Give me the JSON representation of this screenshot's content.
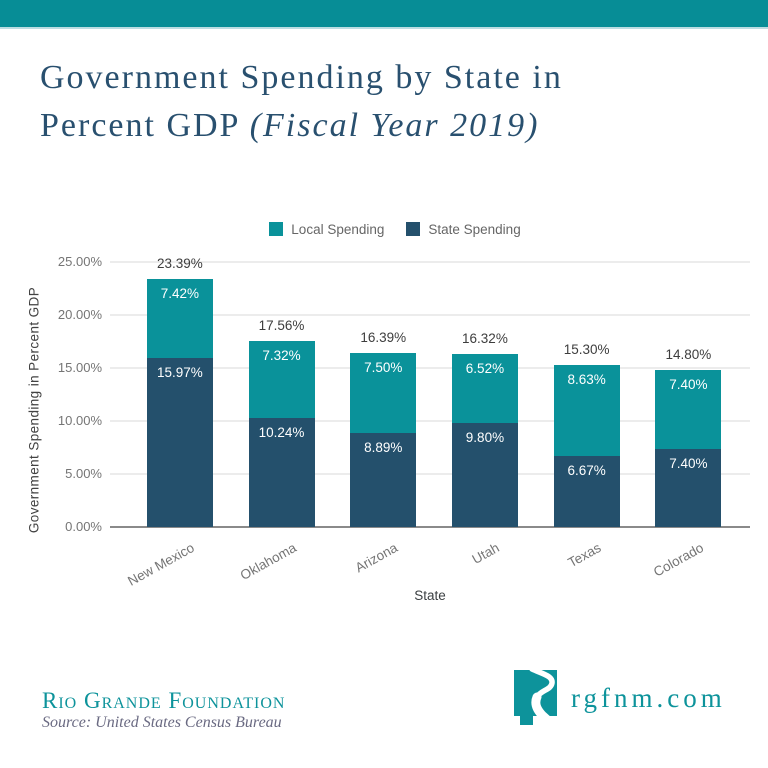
{
  "theme": {
    "band": "#078D96",
    "band_underline": "#BBDDE2",
    "title": "#29506F",
    "brand": "#0D939B"
  },
  "title": {
    "line1": "Government Spending by State in",
    "line2_regular": "Percent GDP ",
    "line2_italic": "(Fiscal Year 2019)"
  },
  "chart_data": {
    "type": "bar",
    "stacked": true,
    "title": "Government Spending by State in Percent GDP (Fiscal Year 2019)",
    "categories": [
      "New Mexico",
      "Oklahoma",
      "Arizona",
      "Utah",
      "Texas",
      "Colorado"
    ],
    "series": [
      {
        "name": "Local Spending",
        "color": "#0A929A",
        "values": [
          7.42,
          7.32,
          7.5,
          6.52,
          8.63,
          7.4
        ]
      },
      {
        "name": "State Spending",
        "color": "#24506C",
        "values": [
          15.97,
          10.24,
          8.89,
          9.8,
          6.67,
          7.4
        ]
      }
    ],
    "stack_order": [
      1,
      0
    ],
    "totals": [
      "23.39%",
      "17.56%",
      "16.39%",
      "16.32%",
      "15.30%",
      "14.80%"
    ],
    "xlabel": "State",
    "ylabel": "Government Spending in Percent GDP",
    "ylim": [
      0,
      25
    ],
    "yticks": [
      "0.00%",
      "5.00%",
      "10.00%",
      "15.00%",
      "20.00%",
      "25.00%"
    ],
    "grid": true,
    "legend_position": "top"
  },
  "footer": {
    "org": "Rio Grande Foundation",
    "source": "Source: United States Census Bureau",
    "site": "rgfnm.com",
    "logo": "new-mexico-rio-grande-icon"
  }
}
